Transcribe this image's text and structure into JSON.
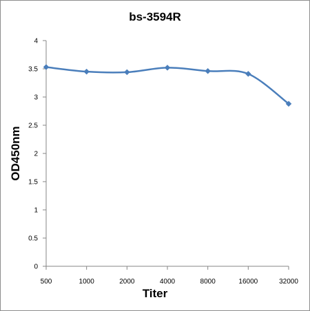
{
  "chart_data": {
    "type": "line",
    "title": "bs-3594R",
    "xlabel": "Titer",
    "ylabel": "OD450nm",
    "categories": [
      "500",
      "1000",
      "2000",
      "4000",
      "8000",
      "16000",
      "32000"
    ],
    "series": [
      {
        "values": [
          3.53,
          3.45,
          3.44,
          3.52,
          3.46,
          3.41,
          2.88
        ]
      }
    ],
    "ylim": [
      0,
      4
    ],
    "yticks": [
      "0",
      "0.5",
      "1",
      "1.5",
      "2",
      "2.5",
      "3",
      "3.5",
      "4"
    ],
    "grid": false,
    "legend": "none",
    "line_color": "#4a7ebb",
    "marker": "diamond"
  }
}
